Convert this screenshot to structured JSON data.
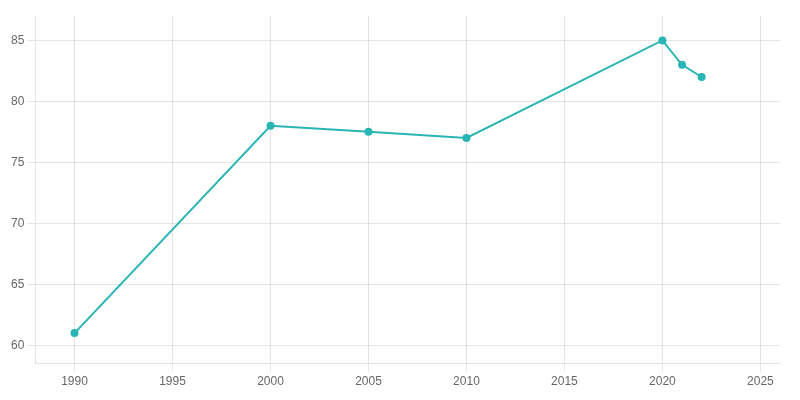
{
  "chart_data": {
    "type": "line",
    "x": [
      1990,
      2000,
      2005,
      2010,
      2020,
      2021,
      2022
    ],
    "values": [
      61,
      78,
      77.5,
      77,
      85,
      83,
      82
    ],
    "color": "#2ab5b5",
    "marker": "circle",
    "xlim": [
      1988,
      2026
    ],
    "ylim": [
      58.5,
      87
    ],
    "xticks": [
      1990,
      1995,
      2000,
      2005,
      2010,
      2015,
      2020,
      2025
    ],
    "yticks": [
      60,
      65,
      70,
      75,
      80,
      85
    ],
    "grid": true
  }
}
